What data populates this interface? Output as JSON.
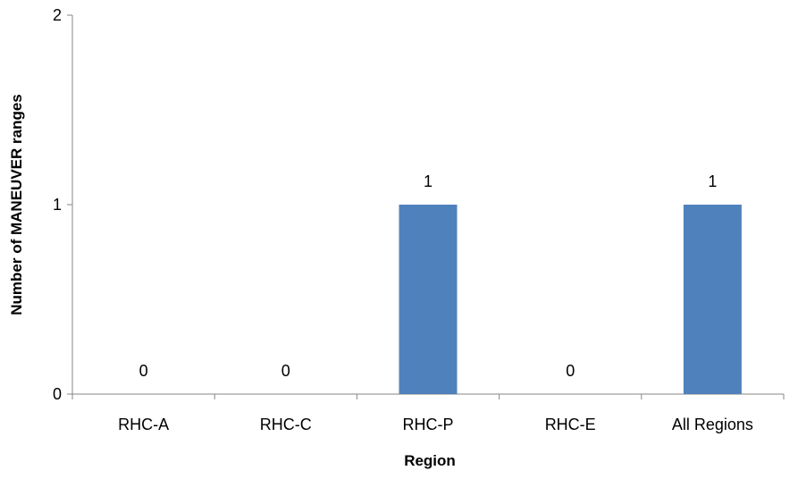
{
  "chart_data": {
    "type": "bar",
    "title": "",
    "xlabel": "Region",
    "ylabel": "Number of MANEUVER ranges",
    "categories": [
      "RHC-A",
      "RHC-C",
      "RHC-P",
      "RHC-E",
      "All Regions"
    ],
    "values": [
      0,
      0,
      1,
      0,
      1
    ],
    "data_labels": [
      "0",
      "0",
      "1",
      "0",
      "1"
    ],
    "ylim": [
      0,
      2
    ],
    "yticks": [
      0,
      1,
      2
    ],
    "grid": false,
    "legend": "none",
    "bar_color": "#4f81bd",
    "axis_color": "#868686"
  }
}
